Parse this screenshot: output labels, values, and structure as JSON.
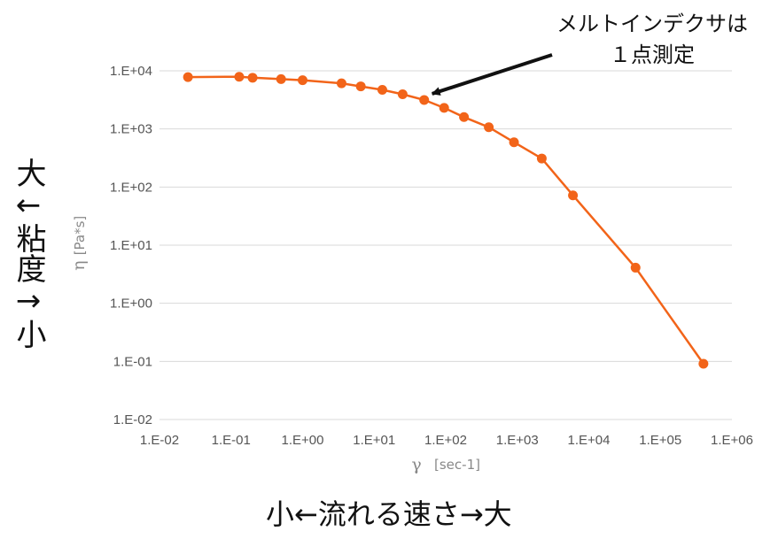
{
  "chart_data": {
    "type": "line",
    "x_scale": "log",
    "y_scale": "log",
    "xlim": [
      0.01,
      1000000
    ],
    "ylim": [
      0.01,
      10000
    ],
    "x_ticks": [
      "1.E-02",
      "1.E-01",
      "1.E+00",
      "1.E+01",
      "1.E+02",
      "1.E+03",
      "1.E+04",
      "1.E+05",
      "1.E+06"
    ],
    "y_ticks": [
      "1.E-02",
      "1.E-01",
      "1.E+00",
      "1.E+01",
      "1.E+02",
      "1.E+03",
      "1.E+04"
    ],
    "ylabel_symbol": "η",
    "ylabel_unit": "[Pa*s]",
    "xlabel_symbol": "γ",
    "xlabel_unit": "[sec-1]",
    "grid": {
      "horizontal": true,
      "vertical": false
    },
    "series": [
      {
        "color": "#f26419",
        "points": [
          [
            0.025,
            7800
          ],
          [
            0.13,
            7900
          ],
          [
            0.2,
            7600
          ],
          [
            0.5,
            7200
          ],
          [
            1.0,
            6900
          ],
          [
            3.5,
            6100
          ],
          [
            6.5,
            5400
          ],
          [
            13,
            4700
          ],
          [
            25,
            3950
          ],
          [
            50,
            3150
          ],
          [
            95,
            2300
          ],
          [
            180,
            1600
          ],
          [
            400,
            1070
          ],
          [
            900,
            590
          ],
          [
            2200,
            310
          ],
          [
            6000,
            72
          ],
          [
            45000,
            4.1
          ],
          [
            400000,
            0.091
          ]
        ]
      }
    ],
    "annotation": {
      "lines": [
        "メルトインデクサは",
        "１点測定"
      ],
      "points_to": [
        50,
        3150
      ]
    }
  },
  "captions": {
    "y_axis": "大←粘度→小",
    "x_axis": "小←流れる速さ→大"
  }
}
